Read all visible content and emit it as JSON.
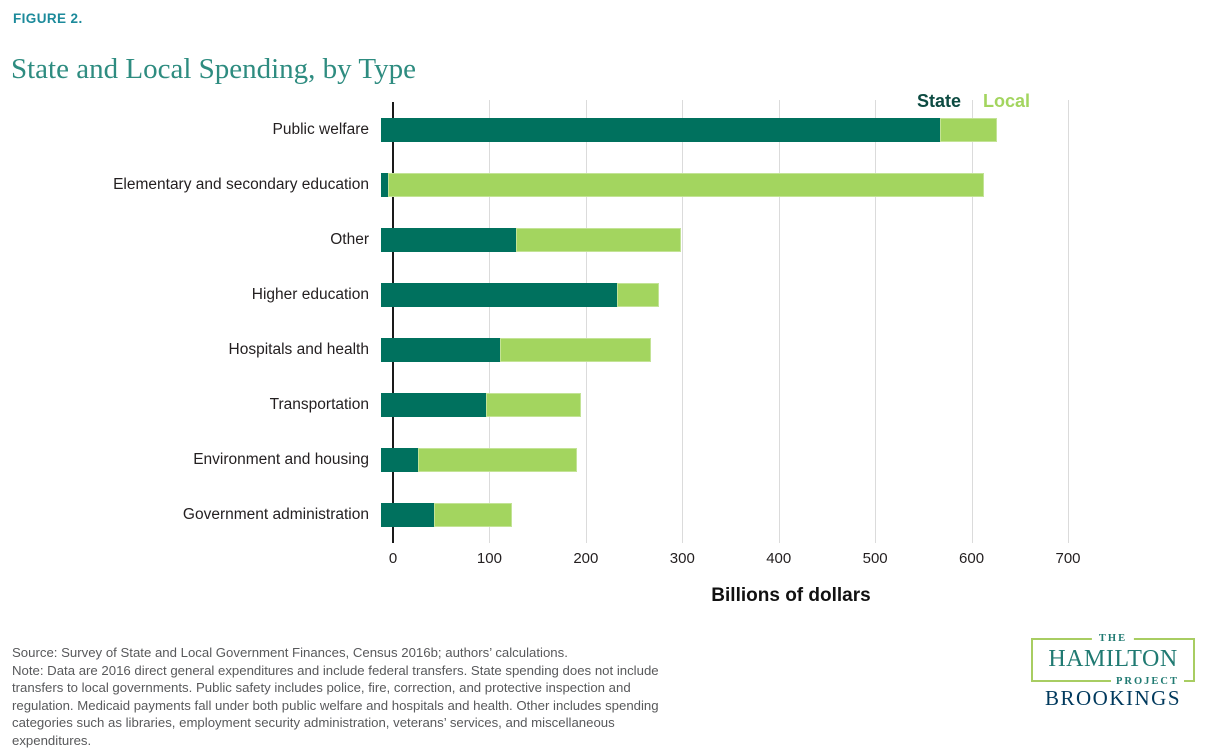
{
  "figure_label": "FIGURE 2.",
  "title": "State and Local Spending, by Type",
  "legend": {
    "state_label": "State",
    "local_label": "Local"
  },
  "chart_data": {
    "type": "bar",
    "orientation": "horizontal",
    "stacked": true,
    "title": "State and Local Spending, by Type",
    "categories": [
      "Public welfare",
      "Elementary and secondary education",
      "Other",
      "Higher education",
      "Hospitals and health",
      "Transportation",
      "Environment and housing",
      "Government administration"
    ],
    "series": [
      {
        "name": "State",
        "color": "#00715E",
        "values": [
          580,
          7,
          140,
          245,
          123,
          109,
          38,
          55
        ]
      },
      {
        "name": "Local",
        "color": "#A3D55F",
        "values": [
          59,
          618,
          171,
          43,
          157,
          98,
          165,
          81
        ]
      }
    ],
    "xlabel": "Billions of dollars",
    "xlim": [
      0,
      700
    ],
    "xticks": [
      0,
      100,
      200,
      300,
      400,
      500,
      600,
      700
    ],
    "grid": true,
    "legend_position": "top-right"
  },
  "footnotes": {
    "lines": [
      "Source: Survey of State and Local Government Finances, Census 2016b; authors’ calculations.",
      "Note: Data are 2016 direct general expenditures and include federal transfers. State spending does not include",
      "transfers to local governments. Public safety includes police, fire, correction, and protective inspection and",
      "regulation. Medicaid payments fall under both public welfare and hospitals and health. Other includes spending",
      "categories such as libraries, employment security administration, veterans’ services, and miscellaneous",
      "expenditures."
    ]
  },
  "logo": {
    "the": "THE",
    "hamilton": "HAMILTON",
    "project": "PROJECT",
    "brookings": "BROOKINGS"
  },
  "colors": {
    "state_bar": "#00715E",
    "local_bar": "#A3D55F",
    "title_teal": "#2E8C80",
    "figure_label_teal": "#1C8A9B",
    "legend_state_text": "#0D4B42",
    "gridline": "#DBDBDB",
    "note_gray": "#58595B",
    "logo_teal": "#207A72",
    "logo_border_green": "#A8CD62",
    "brookings_navy": "#00395D"
  }
}
